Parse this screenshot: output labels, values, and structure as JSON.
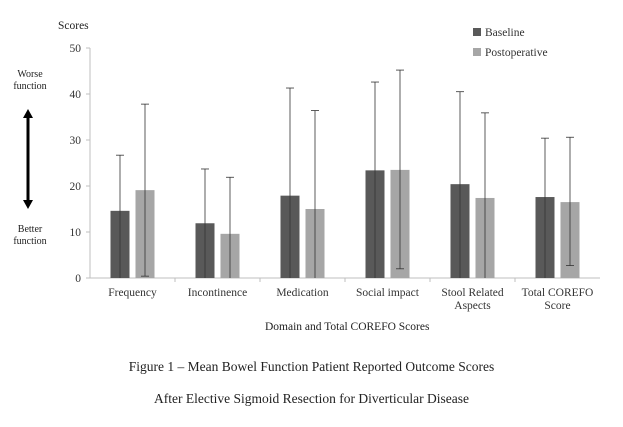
{
  "chart_data": {
    "type": "bar",
    "title": "",
    "ylabel": "Scores",
    "xlabel": "Domain and Total COREFO Scores",
    "ylim": [
      0,
      50
    ],
    "yticks": [
      0,
      10,
      20,
      30,
      40,
      50
    ],
    "categories": [
      [
        "Frequency"
      ],
      [
        "Incontinence"
      ],
      [
        "Medication"
      ],
      [
        "Social impact"
      ],
      [
        "Stool Related",
        "Aspects"
      ],
      [
        "Total COREFO",
        "Score"
      ]
    ],
    "series": [
      {
        "name": "Baseline",
        "color": "#595959",
        "values": [
          14.6,
          11.9,
          17.9,
          23.4,
          20.4,
          17.6
        ],
        "error_upper": [
          26.7,
          23.7,
          41.3,
          42.6,
          40.5,
          30.4
        ],
        "error_lower": [
          null,
          null,
          null,
          null,
          null,
          null
        ]
      },
      {
        "name": "Postoperative",
        "color": "#a6a6a6",
        "values": [
          19.1,
          9.6,
          15.0,
          23.5,
          17.4,
          16.5
        ],
        "error_upper": [
          37.8,
          21.9,
          36.4,
          45.2,
          35.9,
          30.6
        ],
        "error_lower": [
          0.4,
          null,
          null,
          2.0,
          null,
          2.7
        ]
      }
    ],
    "legend_position": "top-right",
    "grid": false
  },
  "side_labels": {
    "top": [
      "Worse",
      "function"
    ],
    "bottom": [
      "Better",
      "function"
    ]
  },
  "captions": [
    "Figure 1 – Mean Bowel Function Patient Reported Outcome Scores",
    "After Elective Sigmoid Resection for Diverticular Disease"
  ]
}
